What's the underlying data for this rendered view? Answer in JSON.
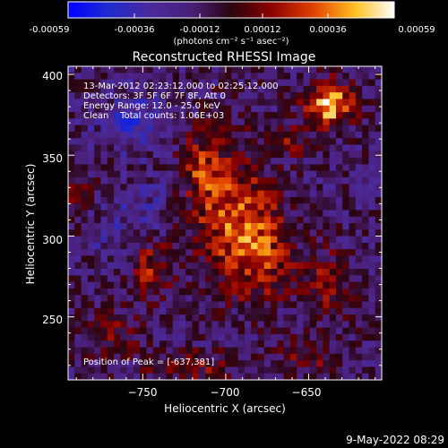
{
  "colorbar": {
    "ticks": [
      "-0.00059",
      "-0.00036",
      "-0.00012",
      "0.00012",
      "0.00036",
      "0.00059"
    ],
    "unit_label": "(photons cm⁻² s⁻¹ asec⁻²)",
    "range": [
      -0.00059,
      0.00059
    ]
  },
  "chart_data": {
    "type": "heatmap",
    "title": "Reconstructed RHESSI Image",
    "xlabel": "Heliocentric X (arcsec)",
    "ylabel": "Heliocentric Y (arcsec)",
    "xlim": [
      -795,
      -606
    ],
    "ylim": [
      211,
      405
    ],
    "x_ticks": [
      -750,
      -700,
      -650
    ],
    "x_tick_labels": [
      "−750",
      "−700",
      "−650"
    ],
    "y_ticks": [
      250,
      300,
      350,
      400
    ],
    "y_tick_labels": [
      "250",
      "300",
      "350",
      "400"
    ],
    "peak": [
      -637,
      381
    ],
    "annotations": [
      "13-Mar-2012 02:23:12.000 to 02:25:12.000",
      "Detectors: 3F 5F 6F 7F 8F, Att 0",
      "Energy Range: 12.0 - 25.0 keV",
      "Clean    Total counts: 1.06E+03"
    ],
    "peak_label": "Position of Peak = [-637,381]"
  },
  "footer": {
    "date": "9-May-2022 08:29"
  }
}
